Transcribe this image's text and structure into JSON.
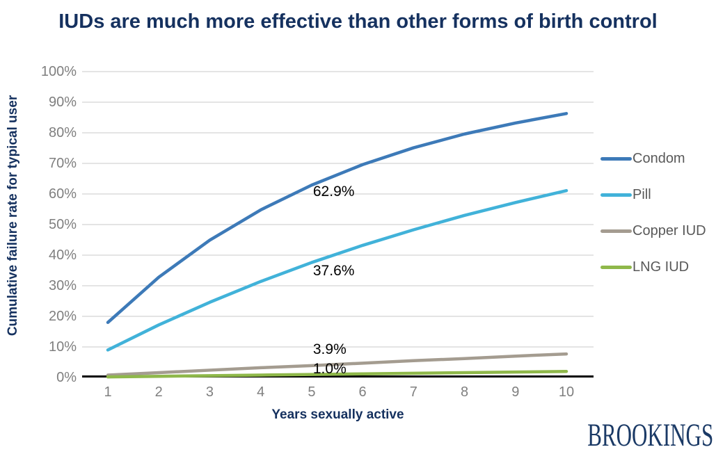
{
  "chart_data": {
    "type": "line",
    "title": "IUDs are much more effective than other forms of birth control",
    "xlabel": "Years sexually active",
    "ylabel": "Cumulative failure rate for typical user",
    "x": [
      1,
      2,
      3,
      4,
      5,
      6,
      7,
      8,
      9,
      10
    ],
    "x_tick_labels": [
      "1",
      "2",
      "3",
      "4",
      "5",
      "6",
      "7",
      "8",
      "9",
      "10"
    ],
    "y_tick_labels": [
      "0%",
      "10%",
      "20%",
      "30%",
      "40%",
      "50%",
      "60%",
      "70%",
      "80%",
      "90%",
      "100%"
    ],
    "xlim": [
      1,
      10
    ],
    "ylim": [
      0,
      100
    ],
    "grid": "horizontal",
    "legend_position": "right",
    "series": [
      {
        "name": "Condom",
        "color": "#3d7ab8",
        "values": [
          18.0,
          32.8,
          44.9,
          54.8,
          62.9,
          69.6,
          75.1,
          79.6,
          83.2,
          86.3
        ]
      },
      {
        "name": "Pill",
        "color": "#41b2d9",
        "values": [
          9.0,
          17.2,
          24.6,
          31.4,
          37.6,
          43.2,
          48.3,
          53.0,
          57.2,
          61.1
        ]
      },
      {
        "name": "Copper IUD",
        "color": "#a49c90",
        "values": [
          0.8,
          1.6,
          2.4,
          3.2,
          3.9,
          4.7,
          5.5,
          6.2,
          7.0,
          7.7
        ]
      },
      {
        "name": "LNG IUD",
        "color": "#8fb84a",
        "values": [
          0.2,
          0.4,
          0.6,
          0.8,
          1.0,
          1.2,
          1.4,
          1.6,
          1.8,
          2.0
        ]
      }
    ],
    "annotations": [
      {
        "text": "62.9%",
        "x": 5,
        "y": 62.9,
        "series": "Condom"
      },
      {
        "text": "37.6%",
        "x": 5,
        "y": 37.6,
        "series": "Pill"
      },
      {
        "text": "3.9%",
        "x": 5,
        "y": 3.9,
        "series": "Copper IUD"
      },
      {
        "text": "1.0%",
        "x": 5,
        "y": 1.0,
        "series": "LNG IUD"
      }
    ]
  },
  "colors": {
    "title_navy": "#15315f",
    "tick_gray": "#7f7f7f",
    "legend_text_gray": "#595959",
    "gridline": "#c8c8c8",
    "axis_line": "#000000",
    "annotation_text": "#000000",
    "logo_navy": "#1b3a66"
  },
  "footer": {
    "logo_text": "BROOKINGS"
  }
}
